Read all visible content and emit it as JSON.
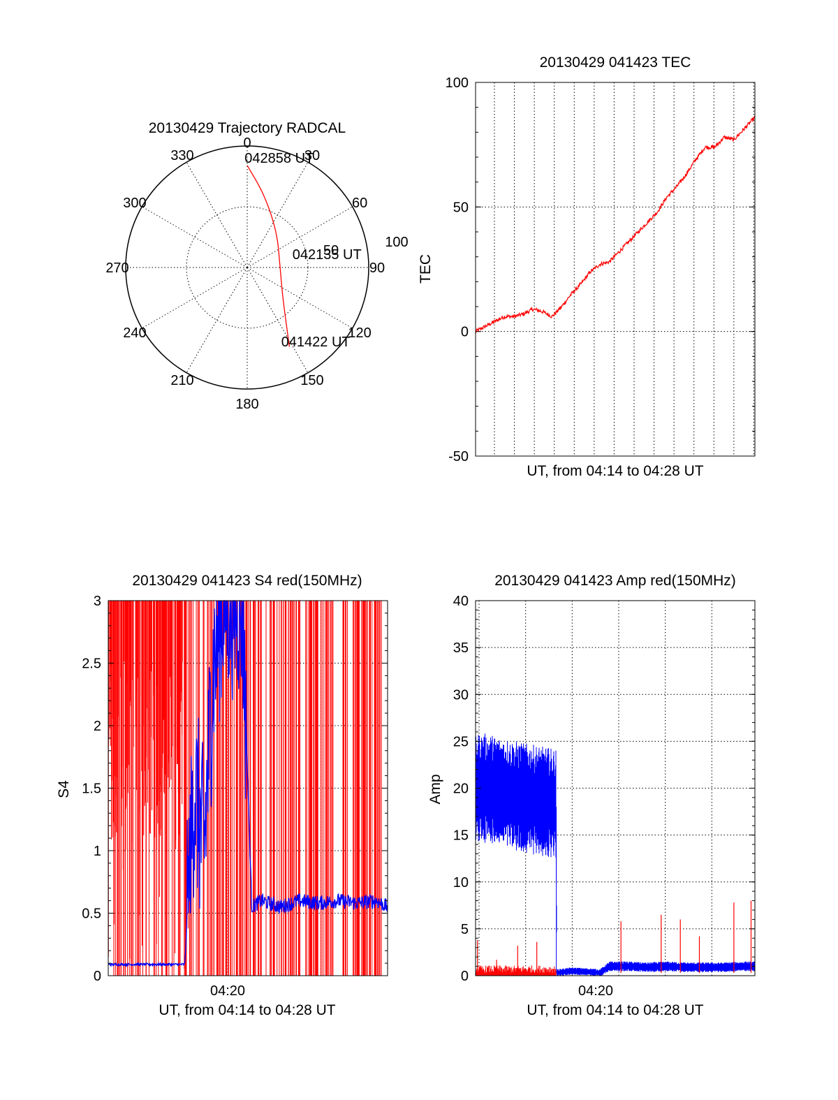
{
  "chart_data": [
    {
      "type": "scatter",
      "subtype": "polar",
      "title": "20130429 Trajectory RADCAL",
      "radial_ticks": [
        "50",
        "100"
      ],
      "radial_range": [
        0,
        100
      ],
      "angle_labels": [
        "0",
        "30",
        "60",
        "90",
        "120",
        "150",
        "180",
        "210",
        "240",
        "270",
        "300",
        "330"
      ],
      "track": {
        "color": "#ff0000",
        "points": [
          {
            "az": 152,
            "r": 74
          },
          {
            "az": 130,
            "r": 38
          },
          {
            "az": 86,
            "r": 27
          },
          {
            "az": 40,
            "r": 38
          },
          {
            "az": 13,
            "r": 62
          },
          {
            "az": 0,
            "r": 84
          }
        ]
      },
      "annotations": [
        {
          "text": "042858 UT",
          "az": 17,
          "r": 90
        },
        {
          "text": "042135 UT",
          "az": 84,
          "r": 66
        },
        {
          "text": "041422 UT",
          "az": 139,
          "r": 86
        }
      ],
      "grid": true
    },
    {
      "type": "line",
      "title": "20130429 041423 TEC",
      "xlabel": "UT, from 04:14 to 04:28 UT",
      "ylabel": "TEC",
      "ylim": [
        -50,
        100
      ],
      "yticks": [
        "-50",
        "0",
        "50",
        "100"
      ],
      "xlim_minutes": [
        0,
        14.6
      ],
      "grid": true,
      "series": [
        {
          "color": "#ff0000",
          "x": [
            0,
            0.5,
            1.0,
            1.5,
            2.0,
            2.5,
            3.0,
            3.5,
            4.0,
            4.5,
            5.0,
            5.5,
            6.0,
            6.5,
            7.0,
            7.5,
            8.0,
            8.5,
            9.0,
            9.5,
            10.0,
            10.5,
            11.0,
            11.5,
            12.0,
            12.5,
            13.0,
            13.5,
            14.0,
            14.6
          ],
          "values": [
            0,
            2,
            4,
            6,
            6,
            7,
            9,
            8,
            6,
            10,
            15,
            19,
            24,
            27,
            28,
            32,
            36,
            40,
            44,
            48,
            54,
            58,
            63,
            69,
            74,
            74,
            78,
            77,
            81,
            86
          ]
        }
      ]
    },
    {
      "type": "line",
      "title": "20130429 041423 S4 red(150MHz)",
      "xlabel": "UT, from 04:14 to 04:28 UT",
      "ylabel": "S4",
      "ylim": [
        0,
        3
      ],
      "yticks": [
        "0",
        "0.5",
        "1",
        "1.5",
        "2",
        "2.5",
        "3"
      ],
      "xticks": [
        "04:20"
      ],
      "xlim_minutes": [
        0,
        14.6
      ],
      "grid": true,
      "series": [
        {
          "color": "#ff0000",
          "description_values": "dense red spikes saturating 0 to 3 across whole range"
        },
        {
          "color": "#0000ff",
          "x": [
            0,
            1,
            2,
            3,
            4,
            4.5,
            5,
            5.5,
            6,
            6.5,
            7,
            7.5,
            8,
            9,
            10,
            11,
            12,
            13,
            14,
            14.6
          ],
          "values": [
            0.09,
            0.09,
            0.09,
            0.09,
            0.09,
            1.5,
            1.0,
            2.5,
            3.0,
            3.0,
            3.0,
            0.55,
            0.6,
            0.55,
            0.6,
            0.58,
            0.6,
            0.58,
            0.6,
            0.55
          ]
        }
      ]
    },
    {
      "type": "line",
      "title": "20130429 041423 Amp red(150MHz)",
      "xlabel": "UT, from 04:14 to 04:28 UT",
      "ylabel": "Amp",
      "ylim": [
        0,
        40
      ],
      "yticks": [
        "0",
        "5",
        "10",
        "15",
        "20",
        "25",
        "30",
        "35",
        "40"
      ],
      "xticks": [
        "04:20"
      ],
      "xlim_minutes": [
        0,
        14.6
      ],
      "grid": true,
      "series": [
        {
          "color": "#0000ff",
          "x": [
            0,
            0.5,
            1,
            1.5,
            2,
            2.5,
            3,
            3.5,
            4,
            4.2,
            4.25,
            5,
            6,
            6.5,
            7,
            8,
            9,
            10,
            11,
            12,
            13,
            14,
            14.6
          ],
          "values": [
            20,
            20,
            19.8,
            19.5,
            19.2,
            19,
            18.8,
            18.6,
            18.4,
            18.3,
            0.3,
            0.5,
            0.4,
            0.3,
            1.0,
            1.0,
            0.9,
            1.0,
            0.9,
            0.9,
            0.9,
            1.0,
            1.0
          ],
          "band": [
            4.5,
            4.5,
            4.5,
            4.5,
            4.5,
            4.5,
            4.5,
            4.5,
            4.5,
            4.5,
            0.3,
            0.3,
            0.3,
            0.3,
            0.4,
            0.4,
            0.4,
            0.4,
            0.4,
            0.4,
            0.4,
            0.4,
            0.4
          ]
        },
        {
          "color": "#ff0000",
          "x": [
            0,
            1,
            2,
            3,
            4,
            4.2
          ],
          "values": [
            0.4,
            0.4,
            0.4,
            0.4,
            0.4,
            0.4
          ],
          "spikes": [
            {
              "x": 0.1,
              "y": 3.8
            },
            {
              "x": 1.1,
              "y": 1.7
            },
            {
              "x": 2.2,
              "y": 3.2
            },
            {
              "x": 3.2,
              "y": 3.6
            },
            {
              "x": 7.6,
              "y": 5.8
            },
            {
              "x": 9.7,
              "y": 6.5
            },
            {
              "x": 10.7,
              "y": 6.0
            },
            {
              "x": 11.7,
              "y": 4.2
            },
            {
              "x": 13.5,
              "y": 7.8
            },
            {
              "x": 14.4,
              "y": 8.0
            }
          ]
        }
      ]
    }
  ]
}
